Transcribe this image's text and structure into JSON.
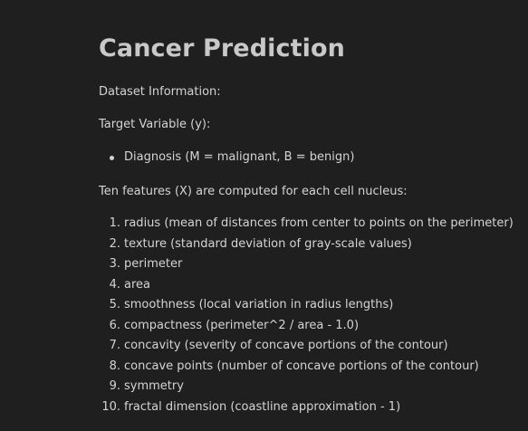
{
  "title": "Cancer Prediction",
  "dataset_info": "Dataset Information:",
  "target_variable": "Target Variable (y):",
  "target_items": [
    "Diagnosis (M = malignant, B = benign)"
  ],
  "features_intro": "Ten features (X) are computed for each cell nucleus:",
  "features": [
    {
      "num": "1.",
      "text": "radius (mean of distances from center to points on the perimeter)"
    },
    {
      "num": "2.",
      "text": "texture (standard deviation of gray-scale values)"
    },
    {
      "num": "3.",
      "text": "perimeter"
    },
    {
      "num": "4.",
      "text": "area"
    },
    {
      "num": "5.",
      "text": "smoothness (local variation in radius lengths)"
    },
    {
      "num": "6.",
      "text": "compactness (perimeter^2 / area - 1.0)"
    },
    {
      "num": "7.",
      "text": "concavity (severity of concave portions of the contour)"
    },
    {
      "num": "8.",
      "text": "concave points (number of concave portions of the contour)"
    },
    {
      "num": "9.",
      "text": "symmetry"
    },
    {
      "num": "10.",
      "text": "fractal dimension (coastline approximation - 1)"
    }
  ],
  "colors": {
    "background": "#1f1f1f",
    "text": "#d4d4d4",
    "title": "#c8c8c8"
  }
}
